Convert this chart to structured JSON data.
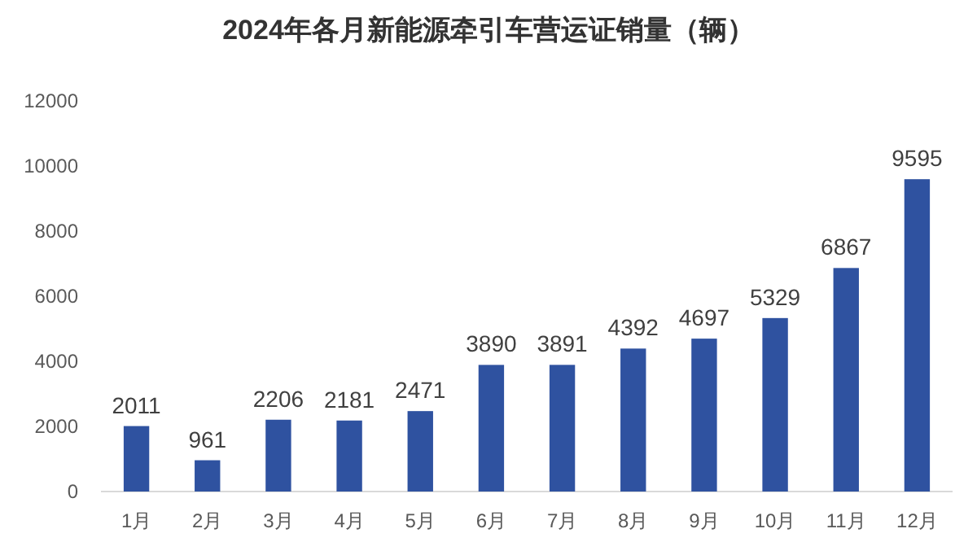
{
  "chart_data": {
    "type": "bar",
    "title": "2024年各月新能源牵引车营运证销量（辆）",
    "categories": [
      "1月",
      "2月",
      "3月",
      "4月",
      "5月",
      "6月",
      "7月",
      "8月",
      "9月",
      "10月",
      "11月",
      "12月"
    ],
    "values": [
      2011,
      961,
      2206,
      2181,
      2471,
      3890,
      3891,
      4392,
      4697,
      5329,
      6867,
      9595
    ],
    "color": "#2f52a0",
    "ylim": [
      0,
      12000
    ],
    "yticks": [
      0,
      2000,
      4000,
      6000,
      8000,
      10000,
      12000
    ],
    "data_labels": true,
    "grid": false
  }
}
